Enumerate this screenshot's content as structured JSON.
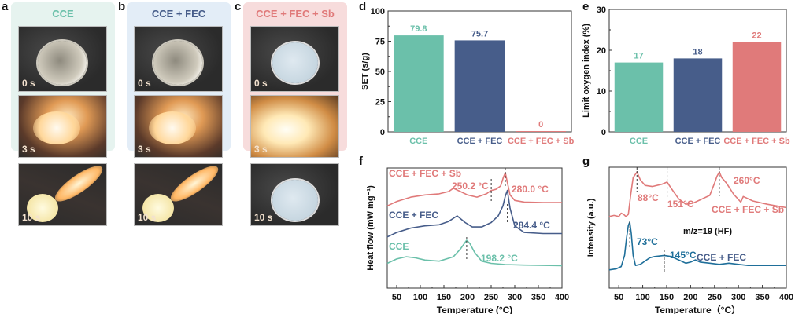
{
  "panel_labels": {
    "a": "a",
    "b": "b",
    "c": "c",
    "d": "d",
    "e": "e",
    "f": "f",
    "g": "g"
  },
  "colors": {
    "cce": "#6bc0aa",
    "cce_fec": "#475d8a",
    "cce_fec_sb": "#e07a7a",
    "cce_g": "#1f6f9a"
  },
  "photo_panels": [
    {
      "title": "CCE",
      "bg": "#e6f3ef",
      "color": "#6bc0aa",
      "frames": [
        {
          "time": "0 s",
          "state": "clear"
        },
        {
          "time": "3 s",
          "state": "burning"
        },
        {
          "time": "10 s",
          "state": "burning"
        }
      ]
    },
    {
      "title": "CCE + FEC",
      "bg": "#e3edf7",
      "color": "#475d8a",
      "frames": [
        {
          "time": "0 s",
          "state": "clear"
        },
        {
          "time": "3 s",
          "state": "burning"
        },
        {
          "time": "10 s",
          "state": "burning"
        }
      ]
    },
    {
      "title": "CCE + FEC + Sb",
      "bg": "#f7dcdc",
      "color": "#e07a7a",
      "frames": [
        {
          "time": "0 s",
          "state": "white"
        },
        {
          "time": "3 s",
          "state": "flash"
        },
        {
          "time": "10 s",
          "state": "white"
        }
      ]
    }
  ],
  "chart_data": [
    {
      "id": "d",
      "type": "bar",
      "title": "",
      "xlabel": "",
      "ylabel": "SET (s/g)",
      "categories": [
        "CCE",
        "CCE + FEC",
        "CCE + FEC + Sb"
      ],
      "values": [
        79.8,
        75.7,
        0
      ],
      "value_labels": [
        "79.8",
        "75.7",
        "0"
      ],
      "ylim": [
        0,
        100
      ],
      "yticks": [
        0,
        25,
        50,
        75,
        100
      ],
      "bar_colors": [
        "#6bc0aa",
        "#475d8a",
        "#e07a7a"
      ],
      "grid": false,
      "legend": "none"
    },
    {
      "id": "e",
      "type": "bar",
      "title": "",
      "xlabel": "",
      "ylabel": "Limit oxygen index (%)",
      "categories": [
        "CCE",
        "CCE + FEC",
        "CCE + FEC + Sb"
      ],
      "values": [
        17,
        18,
        22
      ],
      "value_labels": [
        "17",
        "18",
        "22"
      ],
      "ylim": [
        0,
        30
      ],
      "yticks": [
        0,
        10,
        20,
        30
      ],
      "bar_colors": [
        "#6bc0aa",
        "#475d8a",
        "#e07a7a"
      ],
      "grid": false,
      "legend": "none"
    },
    {
      "id": "f",
      "type": "line",
      "title": "",
      "xlabel": "Temperature (°C)",
      "ylabel": "Heat flow (mW mg⁻¹)",
      "xlim": [
        30,
        400
      ],
      "xticks": [
        50,
        100,
        150,
        200,
        250,
        300,
        350,
        400
      ],
      "series": [
        {
          "name": "CCE + FEC + Sb",
          "color": "#e07a7a",
          "x": [
            30,
            50,
            80,
            110,
            140,
            160,
            170,
            185,
            200,
            220,
            240,
            250,
            260,
            270,
            276,
            280,
            284,
            290,
            300,
            320,
            360,
            400
          ],
          "y": [
            0.7,
            0.74,
            0.78,
            0.8,
            0.81,
            0.83,
            0.86,
            0.83,
            0.8,
            0.78,
            0.81,
            0.84,
            0.85,
            0.88,
            0.96,
            1.0,
            0.92,
            0.8,
            0.75,
            0.735,
            0.73,
            0.73
          ]
        },
        {
          "name": "CCE + FEC",
          "color": "#475d8a",
          "x": [
            30,
            50,
            80,
            110,
            140,
            160,
            178,
            195,
            210,
            230,
            250,
            265,
            275,
            280,
            284.4,
            290,
            300,
            320,
            360,
            400
          ],
          "y": [
            0.42,
            0.46,
            0.5,
            0.52,
            0.53,
            0.56,
            0.61,
            0.55,
            0.51,
            0.51,
            0.55,
            0.61,
            0.7,
            0.79,
            0.84,
            0.68,
            0.52,
            0.46,
            0.45,
            0.45
          ]
        },
        {
          "name": "CCE",
          "color": "#6bc0aa",
          "x": [
            30,
            50,
            70,
            90,
            110,
            140,
            170,
            185,
            198.2,
            205,
            215,
            230,
            250,
            280,
            320,
            400
          ],
          "y": [
            0.18,
            0.22,
            0.24,
            0.23,
            0.21,
            0.2,
            0.24,
            0.31,
            0.39,
            0.36,
            0.28,
            0.2,
            0.18,
            0.17,
            0.165,
            0.16
          ]
        }
      ],
      "annotations": [
        {
          "text": "CCE + FEC + Sb",
          "color": "#e07a7a"
        },
        {
          "text": "250.2 °C",
          "x": 250.2,
          "color": "#e07a7a"
        },
        {
          "text": "280.0 °C",
          "x": 280.0,
          "color": "#e07a7a"
        },
        {
          "text": "CCE + FEC",
          "color": "#475d8a"
        },
        {
          "text": "284.4 °C",
          "x": 284.4,
          "color": "#475d8a"
        },
        {
          "text": "CCE",
          "color": "#6bc0aa"
        },
        {
          "text": "198.2 °C",
          "x": 198.2,
          "color": "#6bc0aa"
        }
      ]
    },
    {
      "id": "g",
      "type": "line",
      "title": "",
      "xlabel": "Temperature（°C）",
      "ylabel": "Intensity (a.u.)",
      "xlim": [
        30,
        400
      ],
      "xticks": [
        50,
        100,
        150,
        200,
        250,
        300,
        350,
        400
      ],
      "series": [
        {
          "name": "CCE + FEC + Sb",
          "color": "#e07a7a",
          "x": [
            30,
            40,
            50,
            55,
            60,
            65,
            70,
            75,
            80,
            88,
            95,
            105,
            120,
            140,
            151,
            160,
            175,
            190,
            205,
            220,
            240,
            250,
            255,
            260,
            265,
            275,
            290,
            305,
            310,
            315,
            330,
            360,
            400
          ],
          "y": [
            0.6,
            0.61,
            0.6,
            0.63,
            0.62,
            0.6,
            0.62,
            0.8,
            0.95,
            1.0,
            0.93,
            0.88,
            0.87,
            0.89,
            0.91,
            0.85,
            0.76,
            0.71,
            0.72,
            0.75,
            0.79,
            0.9,
            0.96,
            1.0,
            0.95,
            0.9,
            0.8,
            0.73,
            0.78,
            0.77,
            0.74,
            0.71,
            0.68
          ]
        },
        {
          "name": "CCE + FEC",
          "color": "#1f6f9a",
          "x": [
            30,
            45,
            55,
            62,
            66,
            70,
            73,
            76,
            80,
            85,
            95,
            105,
            115,
            125,
            145,
            160,
            175,
            190,
            200,
            210,
            220,
            240,
            260,
            280,
            300,
            320,
            350,
            400
          ],
          "y": [
            0.12,
            0.13,
            0.15,
            0.25,
            0.4,
            0.52,
            0.55,
            0.45,
            0.25,
            0.16,
            0.17,
            0.2,
            0.23,
            0.24,
            0.25,
            0.24,
            0.21,
            0.18,
            0.19,
            0.21,
            0.19,
            0.18,
            0.17,
            0.18,
            0.17,
            0.16,
            0.16,
            0.16
          ]
        }
      ],
      "annotations": [
        {
          "text": "88°C",
          "x": 88,
          "color": "#e07a7a"
        },
        {
          "text": "151°C",
          "x": 151,
          "color": "#e07a7a"
        },
        {
          "text": "260°C",
          "x": 260,
          "color": "#e07a7a"
        },
        {
          "text": "CCE + FEC + Sb",
          "color": "#e07a7a"
        },
        {
          "text": "m/z=19 (HF)",
          "color": "#111111"
        },
        {
          "text": "73°C",
          "x": 73,
          "color": "#1f6f9a"
        },
        {
          "text": "145°C",
          "x": 145,
          "color": "#1f6f9a"
        },
        {
          "text": "CCE + FEC",
          "color": "#475d8a"
        }
      ]
    }
  ]
}
